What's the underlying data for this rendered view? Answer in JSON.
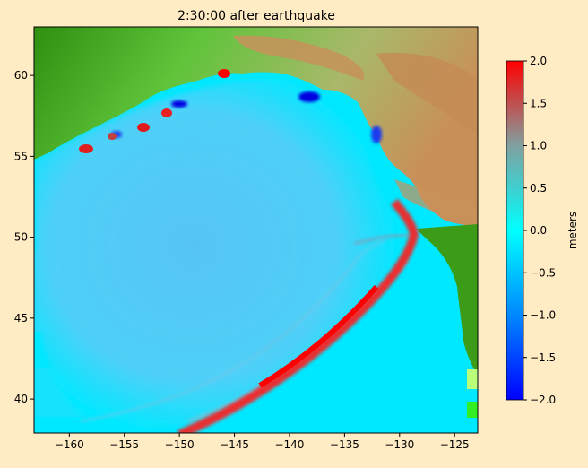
{
  "title": "2:30:00 after earthquake",
  "map": {
    "x_ticks": [
      -160,
      -155,
      -150,
      -145,
      -140,
      -135,
      -130,
      -125
    ],
    "y_ticks": [
      40,
      45,
      50,
      55,
      60
    ],
    "x_range": [
      -163.2,
      -122.9
    ],
    "y_range": [
      37.9,
      63.0
    ]
  },
  "colorbar": {
    "label": "meters",
    "ticks": [
      2.0,
      1.5,
      1.0,
      0.5,
      0.0,
      -0.5,
      -1.0,
      -1.5,
      -2.0
    ],
    "tick_labels": [
      "2.0",
      "1.5",
      "1.0",
      "0.5",
      "0.0",
      "−0.5",
      "−1.0",
      "−1.5",
      "−2.0"
    ],
    "range": [
      -2.0,
      2.0
    ],
    "colors": [
      "#0000ff",
      "#0088ff",
      "#00ffff",
      "#80a0a0",
      "#ff0000"
    ]
  },
  "colors": {
    "ocean": "#00e8ff",
    "deep_ocean": "#3cc8f6",
    "land_low": "#2f9a10",
    "land_mid": "#8fd66f",
    "land_high": "#c7925a",
    "wave_crest": "#ff1a1a",
    "trough": "#0000e0"
  }
}
